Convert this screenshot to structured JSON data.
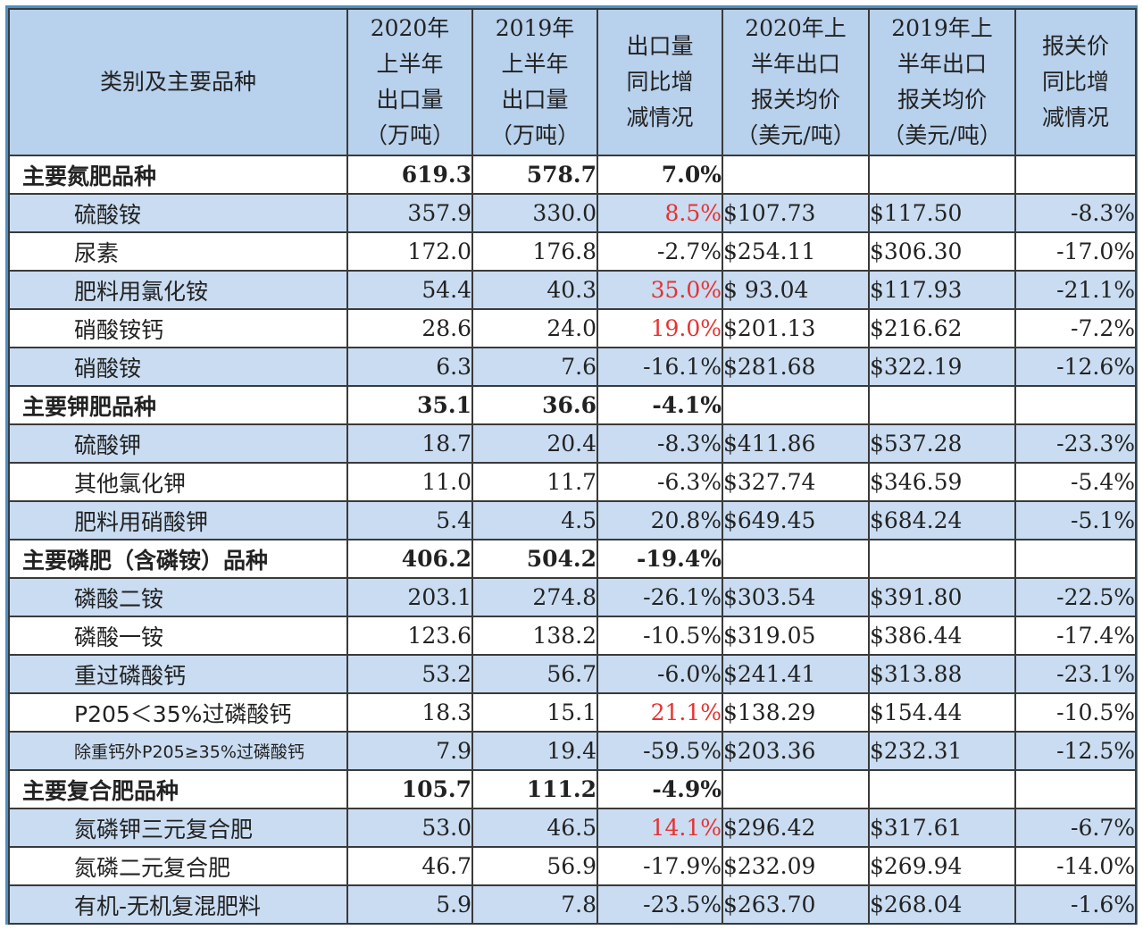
{
  "table": {
    "headers": [
      [
        "类别及主要品种"
      ],
      [
        "2020年",
        "上半年",
        "出口量",
        "（万吨）"
      ],
      [
        "2019年",
        "上半年",
        "出口量",
        "（万吨）"
      ],
      [
        "出口量",
        "同比增",
        "减情况"
      ],
      [
        "2020年上",
        "半年出口",
        "报关均价",
        "（美元/吨）"
      ],
      [
        "2019年上",
        "半年出口",
        "报关均价",
        "（美元/吨）"
      ],
      [
        "报关价",
        "同比增",
        "减情况"
      ]
    ],
    "rows": [
      {
        "type": "category",
        "name": "主要氮肥品种",
        "v2020": "619.3",
        "v2019": "578.7",
        "yoy": "7.0%",
        "p2020": "",
        "p2019": "",
        "pyoy": ""
      },
      {
        "type": "item",
        "shade": "blue",
        "name": "硫酸铵",
        "v2020": "357.9",
        "v2019": "330.0",
        "yoy": "8.5%",
        "yoy_color": "red",
        "p2020": "$107.73",
        "p2019": "$117.50",
        "pyoy": "-8.3%"
      },
      {
        "type": "item",
        "shade": "white",
        "name": "尿素",
        "v2020": "172.0",
        "v2019": "176.8",
        "yoy": "-2.7%",
        "p2020": "$254.11",
        "p2019": "$306.30",
        "pyoy": "-17.0%"
      },
      {
        "type": "item",
        "shade": "blue",
        "name": "肥料用氯化铵",
        "v2020": "54.4",
        "v2019": "40.3",
        "yoy": "35.0%",
        "yoy_color": "red",
        "p2020": "$ 93.04",
        "p2019": "$117.93",
        "pyoy": "-21.1%"
      },
      {
        "type": "item",
        "shade": "white",
        "name": "硝酸铵钙",
        "v2020": "28.6",
        "v2019": "24.0",
        "yoy": "19.0%",
        "yoy_color": "red",
        "p2020": "$201.13",
        "p2019": "$216.62",
        "pyoy": "-7.2%"
      },
      {
        "type": "item",
        "shade": "blue",
        "name": "硝酸铵",
        "v2020": "6.3",
        "v2019": "7.6",
        "yoy": "-16.1%",
        "p2020": "$281.68",
        "p2019": "$322.19",
        "pyoy": "-12.6%"
      },
      {
        "type": "category",
        "name": "主要钾肥品种",
        "v2020": "35.1",
        "v2019": "36.6",
        "yoy": "-4.1%",
        "p2020": "",
        "p2019": "",
        "pyoy": ""
      },
      {
        "type": "item",
        "shade": "blue",
        "name": "硫酸钾",
        "v2020": "18.7",
        "v2019": "20.4",
        "yoy": "-8.3%",
        "p2020": "$411.86",
        "p2019": "$537.28",
        "pyoy": "-23.3%"
      },
      {
        "type": "item",
        "shade": "white",
        "name": "其他氯化钾",
        "v2020": "11.0",
        "v2019": "11.7",
        "yoy": "-6.3%",
        "p2020": "$327.74",
        "p2019": "$346.59",
        "pyoy": "-5.4%"
      },
      {
        "type": "item",
        "shade": "blue",
        "name": "肥料用硝酸钾",
        "v2020": "5.4",
        "v2019": "4.5",
        "yoy": "20.8%",
        "p2020": "$649.45",
        "p2019": "$684.24",
        "pyoy": "-5.1%"
      },
      {
        "type": "category",
        "name": "主要磷肥（含磷铵）品种",
        "v2020": "406.2",
        "v2019": "504.2",
        "yoy": "-19.4%",
        "p2020": "",
        "p2019": "",
        "pyoy": ""
      },
      {
        "type": "item",
        "shade": "blue",
        "name": "磷酸二铵",
        "v2020": "203.1",
        "v2019": "274.8",
        "yoy": "-26.1%",
        "p2020": "$303.54",
        "p2019": "$391.80",
        "pyoy": "-22.5%"
      },
      {
        "type": "item",
        "shade": "white",
        "name": "磷酸一铵",
        "v2020": "123.6",
        "v2019": "138.2",
        "yoy": "-10.5%",
        "p2020": "$319.05",
        "p2019": "$386.44",
        "pyoy": "-17.4%"
      },
      {
        "type": "item",
        "shade": "blue",
        "name": "重过磷酸钙",
        "v2020": "53.2",
        "v2019": "56.7",
        "yoy": "-6.0%",
        "p2020": "$241.41",
        "p2019": "$313.88",
        "pyoy": "-23.1%"
      },
      {
        "type": "item",
        "shade": "white",
        "name": "P205＜35%过磷酸钙",
        "v2020": "18.3",
        "v2019": "15.1",
        "yoy": "21.1%",
        "yoy_color": "red",
        "p2020": "$138.29",
        "p2019": "$154.44",
        "pyoy": "-10.5%"
      },
      {
        "type": "item",
        "shade": "blue",
        "name": "除重钙外P205≥35%过磷酸钙",
        "small": true,
        "v2020": "7.9",
        "v2019": "19.4",
        "yoy": "-59.5%",
        "p2020": "$203.36",
        "p2019": "$232.31",
        "pyoy": "-12.5%"
      },
      {
        "type": "category",
        "name": "主要复合肥品种",
        "v2020": "105.7",
        "v2019": "111.2",
        "yoy": "-4.9%",
        "p2020": "",
        "p2019": "",
        "pyoy": ""
      },
      {
        "type": "item",
        "shade": "blue",
        "name": "氮磷钾三元复合肥",
        "v2020": "53.0",
        "v2019": "46.5",
        "yoy": "14.1%",
        "yoy_color": "red",
        "p2020": "$296.42",
        "p2019": "$317.61",
        "pyoy": "-6.7%"
      },
      {
        "type": "item",
        "shade": "white",
        "name": "氮磷二元复合肥",
        "v2020": "46.7",
        "v2019": "56.9",
        "yoy": "-17.9%",
        "p2020": "$232.09",
        "p2019": "$269.94",
        "pyoy": "-14.0%"
      },
      {
        "type": "item",
        "shade": "blue",
        "name": "有机-无机复混肥料",
        "v2020": "5.9",
        "v2019": "7.8",
        "yoy": "-23.5%",
        "p2020": "$263.70",
        "p2019": "$268.04",
        "pyoy": "-1.6%"
      }
    ]
  },
  "colors": {
    "header_bg": "#b8d1ec",
    "row_blue": "#c9dcf1",
    "increase_red": "#e83030",
    "frame": "#4a90c8"
  }
}
